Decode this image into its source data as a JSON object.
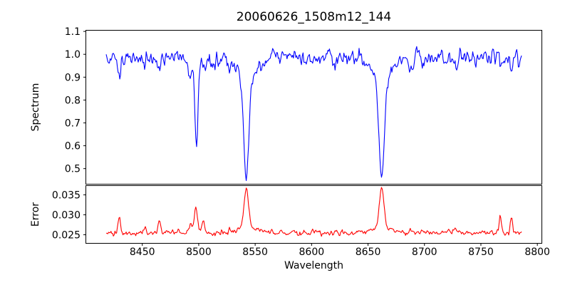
{
  "figure": {
    "title": "20060626_1508m12_144",
    "background_color": "#ffffff",
    "axis_color": "#000000"
  },
  "chart_data": [
    {
      "type": "line",
      "title": "20060626_1508m12_144",
      "xlabel": "",
      "ylabel": "Spectrum",
      "line_color": "#0000ff",
      "grid": false,
      "legend": null,
      "xlim": [
        8400,
        8804
      ],
      "ylim": [
        0.432,
        1.105
      ],
      "yticks": [
        0.5,
        0.6,
        0.7,
        0.8,
        0.9,
        1.0,
        1.1
      ],
      "ytick_labels": [
        "0.5",
        "0.6",
        "0.7",
        "0.8",
        "0.9",
        "1.0",
        "1.1"
      ],
      "x_data_range": [
        8418,
        8786
      ],
      "n_points": 520,
      "seed": 1337,
      "continuum_level": 0.985,
      "noise_sigma": 0.016,
      "absorption_lines": [
        {
          "center": 8429.5,
          "depth": 0.075,
          "sigma": 1.2,
          "min_value": 0.9
        },
        {
          "center": 8452.0,
          "depth": 0.03,
          "sigma": 1.0,
          "min_value": 0.95
        },
        {
          "center": 8465.0,
          "depth": 0.055,
          "sigma": 1.2,
          "min_value": 0.92
        },
        {
          "center": 8492.5,
          "depth": 0.085,
          "sigma": 1.6,
          "min_value": 0.89
        },
        {
          "center": 8498.0,
          "depth": 0.395,
          "sigma": 1.4,
          "min_value": 0.6
        },
        {
          "center": 8504.0,
          "depth": 0.06,
          "sigma": 1.3,
          "min_value": 0.92
        },
        {
          "center": 8513.0,
          "depth": 0.028,
          "sigma": 1.2,
          "min_value": 0.95
        },
        {
          "center": 8542.1,
          "depth": 0.43,
          "sigma": 2.3,
          "min_value": 0.47
        },
        {
          "center": 8542.1,
          "depth": 0.1,
          "sigma": 8.0,
          "min_value": null
        },
        {
          "center": 8621.0,
          "depth": 0.03,
          "sigma": 1.5,
          "min_value": 0.95
        },
        {
          "center": 8662.1,
          "depth": 0.44,
          "sigma": 2.3,
          "min_value": 0.46
        },
        {
          "center": 8662.1,
          "depth": 0.1,
          "sigma": 8.0,
          "min_value": null
        },
        {
          "center": 8688.0,
          "depth": 0.055,
          "sigma": 1.8,
          "min_value": 0.92
        },
        {
          "center": 8728.0,
          "depth": 0.045,
          "sigma": 1.3,
          "min_value": 0.93
        },
        {
          "center": 8767.0,
          "depth": 0.05,
          "sigma": 1.1,
          "min_value": 0.93
        },
        {
          "center": 8777.0,
          "depth": 0.05,
          "sigma": 1.1,
          "min_value": 0.93
        }
      ]
    },
    {
      "type": "line",
      "title": "",
      "xlabel": "Wavelength",
      "ylabel": "Error",
      "line_color": "#ff0000",
      "grid": false,
      "legend": null,
      "xlim": [
        8400,
        8804
      ],
      "ylim": [
        0.02286,
        0.03732
      ],
      "yticks": [
        0.025,
        0.03,
        0.035
      ],
      "ytick_labels": [
        "0.025",
        "0.030",
        "0.035"
      ],
      "xticks": [
        8450,
        8500,
        8550,
        8600,
        8650,
        8700,
        8750,
        8800
      ],
      "xtick_labels": [
        "8450",
        "8500",
        "8550",
        "8600",
        "8650",
        "8700",
        "8750",
        "8800"
      ],
      "x_data_range": [
        8418,
        8786
      ],
      "n_points": 520,
      "seed": 2024,
      "baseline_level": 0.0255,
      "noise_sigma": 0.00035,
      "error_peaks": [
        {
          "center": 8429.5,
          "amp": 0.004,
          "sigma": 1.2,
          "peak_value": 0.0295
        },
        {
          "center": 8452.0,
          "amp": 0.0012,
          "sigma": 1.0,
          "peak_value": 0.0267
        },
        {
          "center": 8465.0,
          "amp": 0.0032,
          "sigma": 1.2,
          "peak_value": 0.0287
        },
        {
          "center": 8492.5,
          "amp": 0.0017,
          "sigma": 1.6,
          "peak_value": 0.0272
        },
        {
          "center": 8497.5,
          "amp": 0.0062,
          "sigma": 1.5,
          "peak_value": 0.0317
        },
        {
          "center": 8504.0,
          "amp": 0.003,
          "sigma": 1.3,
          "peak_value": 0.0285
        },
        {
          "center": 8542.1,
          "amp": 0.01,
          "sigma": 2.0,
          "peak_value": 0.0368
        },
        {
          "center": 8542.1,
          "amp": 0.0013,
          "sigma": 8.0,
          "peak_value": null
        },
        {
          "center": 8662.1,
          "amp": 0.0098,
          "sigma": 2.0,
          "peak_value": 0.0366
        },
        {
          "center": 8662.1,
          "amp": 0.0013,
          "sigma": 8.0,
          "peak_value": null
        },
        {
          "center": 8688.0,
          "amp": 0.0009,
          "sigma": 2.0,
          "peak_value": 0.0264
        },
        {
          "center": 8728.0,
          "amp": 0.0008,
          "sigma": 1.5,
          "peak_value": 0.0263
        },
        {
          "center": 8767.0,
          "amp": 0.004,
          "sigma": 1.0,
          "peak_value": 0.0295
        },
        {
          "center": 8777.0,
          "amp": 0.004,
          "sigma": 1.0,
          "peak_value": 0.0295
        }
      ],
      "layout": {
        "subplot_height_ratio": [
          2.65,
          1
        ],
        "shared_x_axis": true,
        "legend_position": "none"
      }
    }
  ]
}
